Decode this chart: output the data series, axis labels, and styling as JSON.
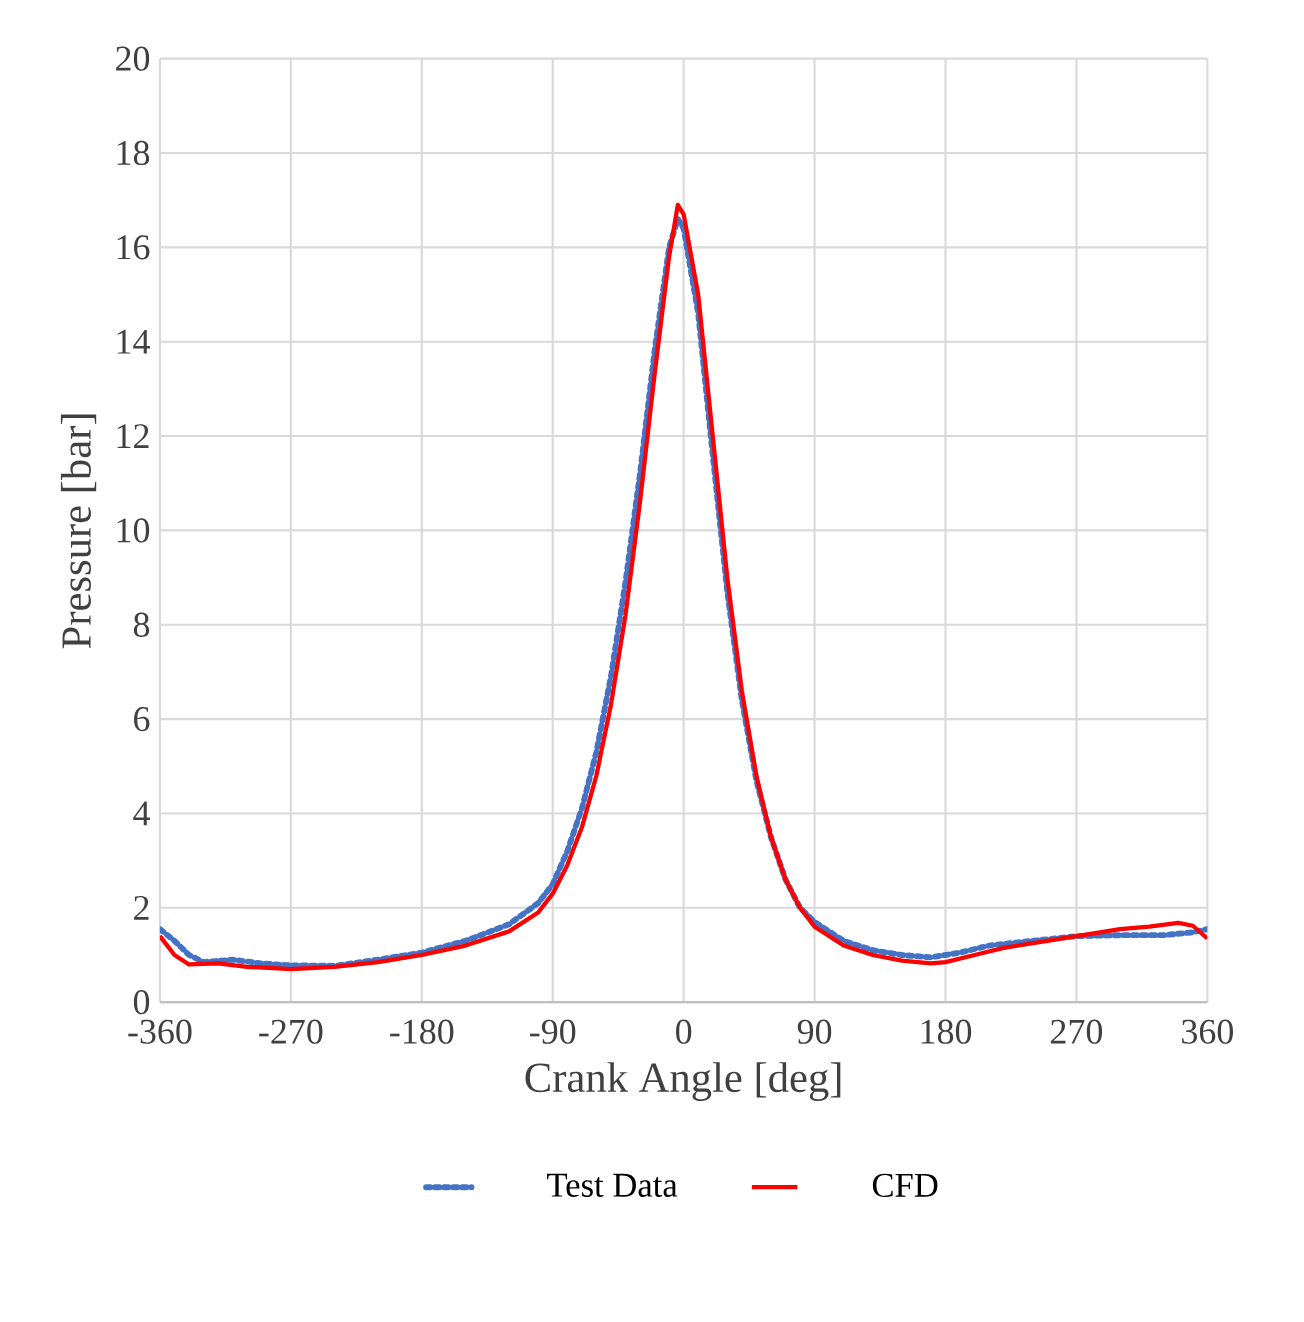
{
  "chart_data": {
    "type": "line",
    "xlabel": "Crank Angle [deg]",
    "ylabel": "Pressure [bar]",
    "xlim": [
      -360,
      360
    ],
    "xticks": [
      -360,
      -270,
      -180,
      -90,
      0,
      90,
      180,
      270,
      360
    ],
    "ylim": [
      0,
      20
    ],
    "yticks": [
      0,
      2,
      4,
      6,
      8,
      10,
      12,
      14,
      16,
      18,
      20
    ],
    "grid": true,
    "legend": "bottom",
    "marker": "none",
    "series": [
      {
        "name": "Test Data",
        "color": "#4472c4",
        "line_style": "dotted",
        "x": [
          -360,
          -350,
          -340,
          -330,
          -310,
          -290,
          -270,
          -240,
          -210,
          -180,
          -150,
          -120,
          -100,
          -90,
          -80,
          -70,
          -60,
          -50,
          -40,
          -30,
          -20,
          -10,
          -4,
          0,
          10,
          20,
          30,
          40,
          50,
          60,
          70,
          80,
          90,
          110,
          130,
          150,
          170,
          190,
          210,
          240,
          270,
          300,
          330,
          350,
          360
        ],
        "values": [
          1.55,
          1.3,
          1.0,
          0.85,
          0.9,
          0.82,
          0.78,
          0.77,
          0.9,
          1.05,
          1.3,
          1.65,
          2.1,
          2.5,
          3.2,
          4.1,
          5.3,
          6.9,
          8.9,
          11.2,
          13.8,
          16.0,
          16.6,
          16.4,
          14.6,
          11.6,
          8.7,
          6.4,
          4.7,
          3.5,
          2.6,
          2.0,
          1.7,
          1.3,
          1.1,
          1.0,
          0.95,
          1.05,
          1.2,
          1.3,
          1.4,
          1.42,
          1.42,
          1.48,
          1.55
        ]
      },
      {
        "name": "CFD",
        "color": "#ff0000",
        "line_style": "solid",
        "x": [
          -360,
          -350,
          -340,
          -320,
          -300,
          -270,
          -240,
          -210,
          -180,
          -150,
          -120,
          -100,
          -90,
          -80,
          -70,
          -60,
          -50,
          -40,
          -30,
          -20,
          -10,
          -4,
          0,
          10,
          20,
          30,
          40,
          50,
          60,
          70,
          80,
          90,
          110,
          130,
          150,
          170,
          180,
          200,
          220,
          250,
          270,
          300,
          320,
          340,
          350,
          360
        ],
        "values": [
          1.4,
          1.0,
          0.8,
          0.82,
          0.75,
          0.7,
          0.75,
          0.85,
          1.0,
          1.2,
          1.5,
          1.9,
          2.3,
          2.9,
          3.7,
          4.8,
          6.3,
          8.2,
          10.6,
          13.3,
          15.8,
          16.9,
          16.7,
          15.0,
          12.0,
          9.0,
          6.6,
          4.8,
          3.5,
          2.6,
          2.0,
          1.6,
          1.2,
          1.0,
          0.88,
          0.82,
          0.85,
          1.0,
          1.15,
          1.3,
          1.4,
          1.55,
          1.6,
          1.68,
          1.62,
          1.35
        ]
      }
    ]
  }
}
